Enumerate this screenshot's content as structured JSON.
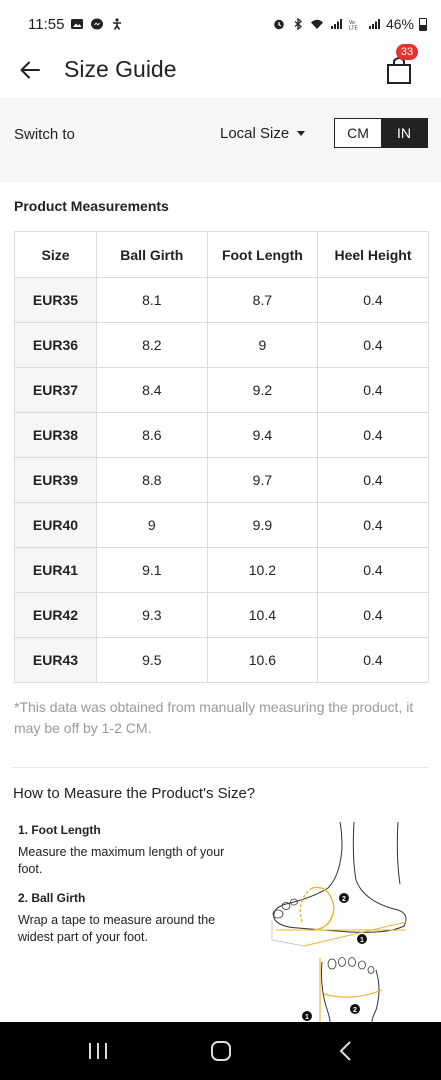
{
  "status_bar": {
    "time": "11:55",
    "battery": "46%",
    "left_icons": [
      "gallery-icon",
      "messenger-icon",
      "accessibility-icon"
    ],
    "right_icons": [
      "alarm-icon",
      "bluetooth-icon",
      "wifi-icon",
      "signal-icon",
      "volte-icon",
      "signal-icon",
      "battery-icon"
    ]
  },
  "header": {
    "title": "Size Guide",
    "back_icon": "arrow-left-icon",
    "bag_icon": "shopping-bag-icon",
    "bag_count": "33"
  },
  "switch_bar": {
    "label": "Switch to",
    "local_size": "Local Size",
    "units": [
      "CM",
      "IN"
    ],
    "selected_unit": "IN"
  },
  "measurements": {
    "title": "Product Measurements",
    "columns": [
      "Size",
      "Ball Girth",
      "Foot Length",
      "Heel Height"
    ],
    "rows": [
      [
        "EUR35",
        "8.1",
        "8.7",
        "0.4"
      ],
      [
        "EUR36",
        "8.2",
        "9",
        "0.4"
      ],
      [
        "EUR37",
        "8.4",
        "9.2",
        "0.4"
      ],
      [
        "EUR38",
        "8.6",
        "9.4",
        "0.4"
      ],
      [
        "EUR39",
        "8.8",
        "9.7",
        "0.4"
      ],
      [
        "EUR40",
        "9",
        "9.9",
        "0.4"
      ],
      [
        "EUR41",
        "9.1",
        "10.2",
        "0.4"
      ],
      [
        "EUR42",
        "9.3",
        "10.4",
        "0.4"
      ],
      [
        "EUR43",
        "9.5",
        "10.6",
        "0.4"
      ]
    ],
    "disclaimer": "*This data was obtained from manually measuring the product, it may be off by 1-2 CM."
  },
  "how_to": {
    "title": "How to Measure the Product's Size?",
    "steps": [
      {
        "title": "1. Foot Length",
        "desc": "Measure the maximum length of your foot."
      },
      {
        "title": "2. Ball Girth",
        "desc": "Wrap a tape to measure around the widest part of your foot."
      }
    ],
    "illustration_marks": [
      "1",
      "2"
    ]
  },
  "nav_bar": {
    "icons": [
      "recent-apps-icon",
      "home-icon",
      "back-icon"
    ]
  },
  "colors": {
    "badge": "#e8322e",
    "selected_unit_bg": "#222222",
    "band_bg": "#f6f6f6",
    "measure_accent": "#e8b62e"
  }
}
